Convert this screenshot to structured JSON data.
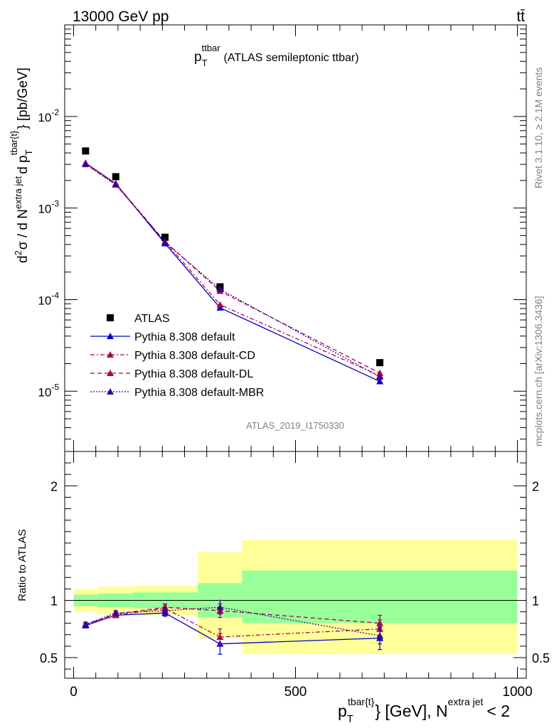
{
  "header": {
    "energy_label": "13000 GeV pp",
    "process_label": "tt̄"
  },
  "side_labels": {
    "rivet": "Rivet 3.1.10, ≥ 2.1M events",
    "mcplots": "mcplots.cern.ch [arXiv:1306.3436]"
  },
  "colors": {
    "data": "#000000",
    "default": "#0000cc",
    "cd": "#b0004e",
    "dl": "#b0004e",
    "mbr": "#3a0099",
    "band_green": "#99ff99",
    "band_yellow": "#ffff99"
  },
  "chart_data": [
    {
      "panel": "main",
      "type": "line",
      "title": "p_T^{ttbar} (ATLAS semileptonic ttbar)",
      "title_main": "p",
      "title_sub": "T",
      "title_sup": "ttbar",
      "title_rest": "(ATLAS semileptonic ttbar)",
      "ylabel": "d²σ / d N^{extra jet} d p_T^{tbar{t}} [pb/GeV]",
      "ylabel_parts": {
        "a": "d",
        "a_sup": "2",
        "b": "σ  /  d N",
        "b_sup": "extra jet",
        "c": "d p",
        "c_sub": "T",
        "c_sup": "tbar{t}",
        "d": "} [pb/GeV]"
      },
      "yscale": "log",
      "ylim": [
        2.2e-06,
        0.1
      ],
      "xlim": [
        -20,
        1020
      ],
      "yticks": [
        {
          "value": 0.01,
          "base": "10",
          "exp": "-2"
        },
        {
          "value": 0.001,
          "base": "10",
          "exp": "-3"
        },
        {
          "value": 0.0001,
          "base": "10",
          "exp": "-4"
        },
        {
          "value": 1e-05,
          "base": "10",
          "exp": "-5"
        }
      ],
      "watermark": "ATLAS_2019_I1750330",
      "legend_position": "lower-left",
      "x": [
        27,
        95,
        206,
        330,
        690
      ],
      "series": [
        {
          "name": "ATLAS",
          "key": "data",
          "marker": "square",
          "values": [
            0.0042,
            0.0022,
            0.00048,
            0.000138,
            2.05e-05
          ]
        },
        {
          "name": "Pythia 8.308 default",
          "key": "default",
          "marker": "triangle",
          "dash": "",
          "values": [
            0.0031,
            0.00185,
            0.00041,
            8.15e-05,
            1.28e-05
          ]
        },
        {
          "name": "Pythia 8.308 default-CD",
          "key": "cd",
          "marker": "triangle",
          "dash": "6,3,2,3",
          "values": [
            0.0031,
            0.00185,
            0.00043,
            8.8e-05,
            1.48e-05
          ]
        },
        {
          "name": "Pythia 8.308 default-DL",
          "key": "dl",
          "marker": "triangle",
          "dash": "6,4",
          "values": [
            0.00305,
            0.0018,
            0.00043,
            0.000124,
            1.58e-05
          ]
        },
        {
          "name": "Pythia 8.308 default-MBR",
          "key": "mbr",
          "marker": "triangle",
          "dash": "2,2",
          "values": [
            0.003,
            0.0018,
            0.000425,
            0.00013,
            1.43e-05
          ]
        }
      ]
    },
    {
      "panel": "ratio",
      "type": "line",
      "ylabel": "Ratio to ATLAS",
      "ylim": [
        0.32,
        2.3
      ],
      "yticks": [
        0.5,
        1,
        2
      ],
      "ytick_labels": [
        "0.5",
        "1",
        "2"
      ],
      "xlim": [
        -20,
        1020
      ],
      "xticks": [
        0,
        500,
        1000
      ],
      "xtick_labels": [
        "0",
        "500",
        "1000"
      ],
      "xlabel": "p_T^{tbar{t}} [GeV], N^{extra jet} < 2",
      "xlabel_parts": {
        "p": "p",
        "p_sub": "T",
        "p_sup": "tbar{t}",
        "mid": "} [GeV], N",
        "n_sup": "extra jet",
        "end": "< 2"
      },
      "bins": [
        [
          0,
          55
        ],
        [
          55,
          135
        ],
        [
          135,
          280
        ],
        [
          280,
          380
        ],
        [
          380,
          1000
        ]
      ],
      "band_green": [
        [
          0.95,
          1.05
        ],
        [
          0.94,
          1.06
        ],
        [
          0.93,
          1.07
        ],
        [
          0.85,
          1.15
        ],
        [
          0.8,
          1.26
        ]
      ],
      "band_yellow": [
        [
          0.9,
          1.1
        ],
        [
          0.88,
          1.12
        ],
        [
          0.87,
          1.13
        ],
        [
          0.67,
          1.42
        ],
        [
          0.53,
          1.53
        ]
      ],
      "x": [
        27,
        95,
        206,
        330,
        690
      ],
      "series": [
        {
          "name": "Pythia 8.308 default",
          "key": "default",
          "dash": "",
          "values": [
            0.78,
            0.87,
            0.89,
            0.62,
            0.67
          ],
          "errors": [
            0.02,
            0.02,
            0.03,
            0.09,
            0.1
          ]
        },
        {
          "name": "Pythia 8.308 default-CD",
          "key": "cd",
          "dash": "6,3,2,3",
          "values": [
            0.79,
            0.87,
            0.93,
            0.68,
            0.75
          ],
          "errors": [
            0.02,
            0.02,
            0.03,
            0.07,
            0.08
          ]
        },
        {
          "name": "Pythia 8.308 default-DL",
          "key": "dl",
          "dash": "6,4",
          "values": [
            0.79,
            0.88,
            0.94,
            0.91,
            0.8
          ],
          "errors": [
            0.02,
            0.02,
            0.03,
            0.06,
            0.07
          ]
        },
        {
          "name": "Pythia 8.308 default-MBR",
          "key": "mbr",
          "dash": "2,2",
          "values": [
            0.79,
            0.89,
            0.91,
            0.94,
            0.69
          ],
          "errors": [
            0.02,
            0.02,
            0.03,
            0.06,
            0.07
          ]
        }
      ]
    }
  ]
}
